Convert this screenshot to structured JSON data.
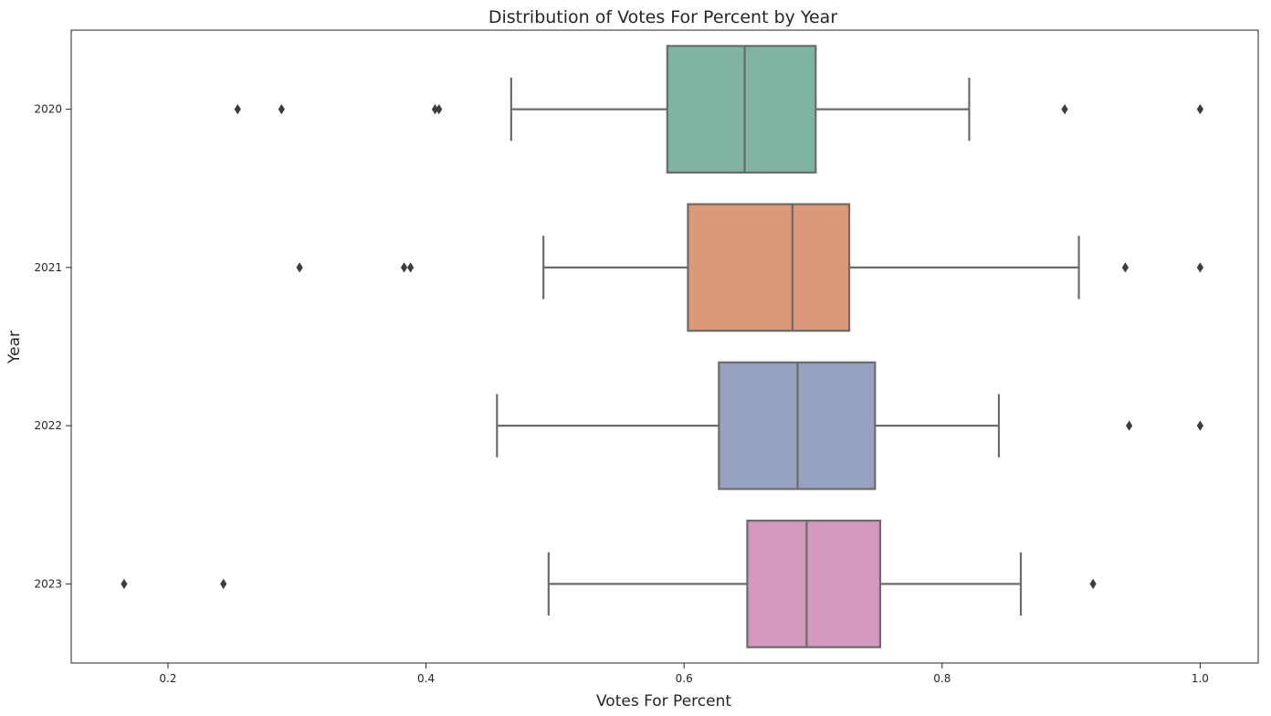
{
  "chart_data": {
    "type": "box",
    "orientation": "horizontal",
    "title": "Distribution of Votes For Percent by Year",
    "xlabel": "Votes For Percent",
    "ylabel": "Year",
    "xlim": [
      0.125,
      1.045
    ],
    "xticks": [
      0.2,
      0.4,
      0.6,
      0.8,
      1.0
    ],
    "xtick_labels": [
      "0.2",
      "0.4",
      "0.6",
      "0.8",
      "1.0"
    ],
    "grid": false,
    "categories": [
      "2020",
      "2021",
      "2022",
      "2023"
    ],
    "series": [
      {
        "category": "2020",
        "color": "#7fb4a2",
        "whisker_low": 0.466,
        "q1": 0.587,
        "median": 0.647,
        "q3": 0.702,
        "whisker_high": 0.821,
        "outliers": [
          0.254,
          0.288,
          0.407,
          0.41,
          0.895,
          1.0
        ]
      },
      {
        "category": "2021",
        "color": "#dc9878",
        "whisker_low": 0.491,
        "q1": 0.603,
        "median": 0.684,
        "q3": 0.728,
        "whisker_high": 0.906,
        "outliers": [
          0.302,
          0.383,
          0.388,
          0.942,
          1.0
        ]
      },
      {
        "category": "2022",
        "color": "#97a1c0",
        "whisker_low": 0.455,
        "q1": 0.627,
        "median": 0.688,
        "q3": 0.748,
        "whisker_high": 0.844,
        "outliers": [
          0.945,
          1.0
        ]
      },
      {
        "category": "2023",
        "color": "#d298bd",
        "whisker_low": 0.495,
        "q1": 0.649,
        "median": 0.695,
        "q3": 0.752,
        "whisker_high": 0.861,
        "outliers": [
          0.166,
          0.243,
          0.917
        ]
      }
    ],
    "line_color": "#6b6b6b"
  }
}
